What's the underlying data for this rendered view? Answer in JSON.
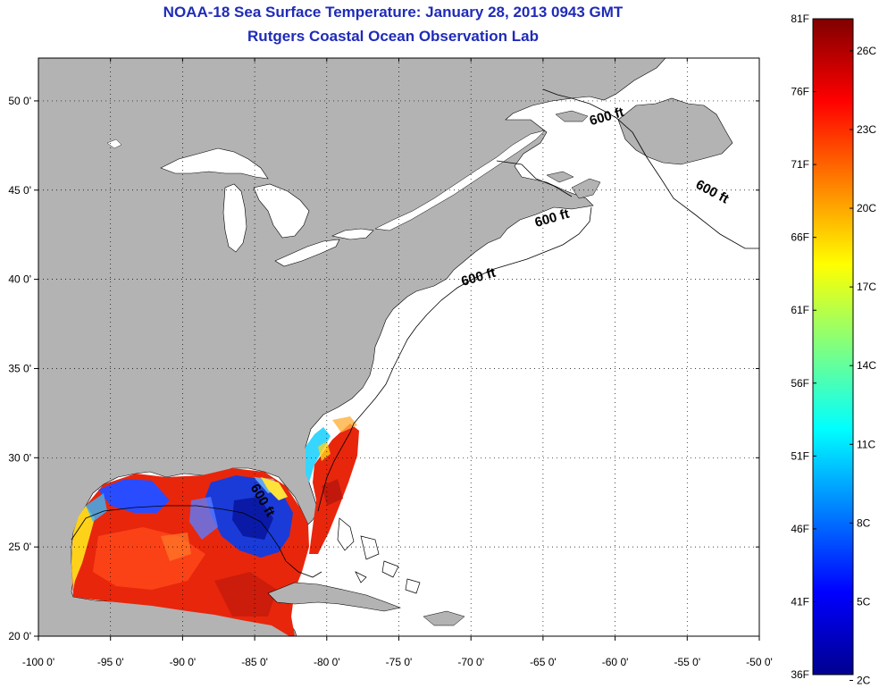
{
  "title": "NOAA-18 Sea Surface Temperature:  January 28, 2013 0943 GMT",
  "subtitle": "Rutgers Coastal Ocean Observation Lab",
  "map": {
    "lon_range": [
      -100,
      -50
    ],
    "lat_range": [
      20,
      52.4
    ],
    "grid": true,
    "lon_ticks": [
      {
        "value": -100,
        "label": "-100 0'"
      },
      {
        "value": -95,
        "label": "-95 0'"
      },
      {
        "value": -90,
        "label": "-90 0'"
      },
      {
        "value": -85,
        "label": "-85 0'"
      },
      {
        "value": -80,
        "label": "-80 0'"
      },
      {
        "value": -75,
        "label": "-75 0'"
      },
      {
        "value": -70,
        "label": "-70 0'"
      },
      {
        "value": -65,
        "label": "-65 0'"
      },
      {
        "value": -60,
        "label": "-60 0'"
      },
      {
        "value": -55,
        "label": "-55 0'"
      },
      {
        "value": -50,
        "label": "-50 0'"
      }
    ],
    "lat_ticks": [
      {
        "value": 50,
        "label": "50 0'"
      },
      {
        "value": 45,
        "label": "45 0'"
      },
      {
        "value": 40,
        "label": "40 0'"
      },
      {
        "value": 35,
        "label": "35 0'"
      },
      {
        "value": 30,
        "label": "30 0'"
      },
      {
        "value": 25,
        "label": "25 0'"
      },
      {
        "value": 20,
        "label": "20 0'"
      }
    ],
    "isobath_labels": [
      {
        "text": "600 ft",
        "lon": -60.5,
        "lat": 48.9
      },
      {
        "text": "600 ft",
        "lon": -53.4,
        "lat": 44.7
      },
      {
        "text": "600 ft",
        "lon": -64.3,
        "lat": 43.2
      },
      {
        "text": "600 ft",
        "lon": -69.4,
        "lat": 39.9
      },
      {
        "text": "600 ft",
        "lon": -84.7,
        "lat": 27.5
      }
    ],
    "land_color": "#b3b3b3",
    "ocean_color": "#ffffff"
  },
  "colorbar": {
    "f_labels": [
      "81F",
      "76F",
      "71F",
      "66F",
      "61F",
      "56F",
      "51F",
      "46F",
      "41F",
      "36F"
    ],
    "c_labels": [
      "26C",
      "23C",
      "20C",
      "17C",
      "14C",
      "11C",
      "8C",
      "5C",
      "2C"
    ],
    "colormap": "jet"
  }
}
